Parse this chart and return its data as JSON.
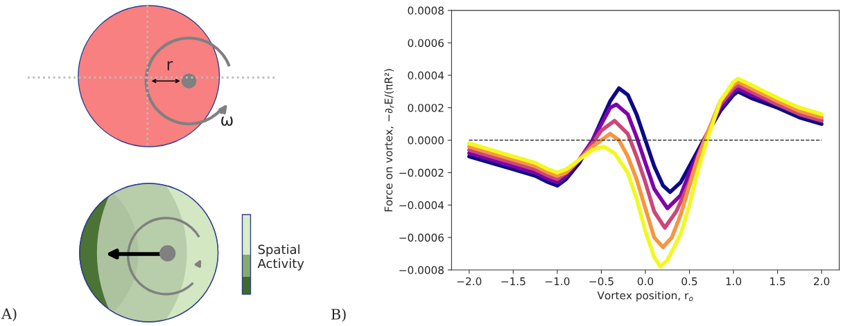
{
  "chart_data": [
    {
      "type": "other",
      "annotations": [
        "r",
        "ω",
        "Spatial\nActivity",
        "A)"
      ]
    },
    {
      "type": "line",
      "xlabel": "Vortex position, r$_{o}$",
      "ylabel": "Force on vortex, −∂$_{r}$E/(πR²)",
      "xlim": [
        -2.2,
        2.2
      ],
      "ylim": [
        -0.0008,
        0.0008
      ],
      "xticks": [
        {
          "value": -2.0,
          "label": "−2.0"
        },
        {
          "value": -1.5,
          "label": "−1.5"
        },
        {
          "value": -1.0,
          "label": "−1.0"
        },
        {
          "value": -0.5,
          "label": "−0.5"
        },
        {
          "value": 0.0,
          "label": "0.0"
        },
        {
          "value": 0.5,
          "label": "0.5"
        },
        {
          "value": 1.0,
          "label": "1.0"
        },
        {
          "value": 1.5,
          "label": "1.5"
        },
        {
          "value": 2.0,
          "label": "2.0"
        }
      ],
      "yticks": [
        {
          "value": -0.0008,
          "label": "−0.0008"
        },
        {
          "value": -0.0006,
          "label": "−0.0006"
        },
        {
          "value": -0.0004,
          "label": "−0.0004"
        },
        {
          "value": -0.0002,
          "label": "−0.0002"
        },
        {
          "value": 0.0,
          "label": "0.0000"
        },
        {
          "value": 0.0002,
          "label": "0.0002"
        },
        {
          "value": 0.0004,
          "label": "0.0004"
        },
        {
          "value": 0.0006,
          "label": "0.0006"
        },
        {
          "value": 0.0008,
          "label": "0.0008"
        }
      ],
      "grid": false,
      "legend": false,
      "marker": "none",
      "line_style": "solid",
      "ref_lines": [
        {
          "axis": "y",
          "value": 0.0,
          "color": "#333333",
          "line_style": "dashed"
        }
      ],
      "annotations": [
        "B)"
      ],
      "series": [
        {
          "color": "#0d0887",
          "x": [
            -2,
            -1.75,
            -1.5,
            -1.25,
            -1.1,
            -1,
            -0.9,
            -0.75,
            -0.6,
            -0.5,
            -0.4,
            -0.3,
            -0.2,
            -0.1,
            0,
            0.1,
            0.2,
            0.28,
            0.4,
            0.5,
            0.6,
            0.7,
            0.85,
            1.0,
            1.05,
            1.2,
            1.5,
            1.75,
            2
          ],
          "values": [
            -0.0001,
            -0.00014,
            -0.00018,
            -0.00022,
            -0.00026,
            -0.00028,
            -0.00024,
            -0.00014,
            0.0,
            0.00012,
            0.00024,
            0.00032,
            0.00028,
            0.00016,
            0.0,
            -0.00016,
            -0.00028,
            -0.00032,
            -0.00026,
            -0.00016,
            -6e-05,
            4e-05,
            0.00018,
            0.00028,
            0.0003,
            0.00026,
            0.0002,
            0.00014,
            0.0001
          ]
        },
        {
          "color": "#7e03a8",
          "x": [
            -2,
            -1.75,
            -1.5,
            -1.25,
            -1.1,
            -1,
            -0.9,
            -0.75,
            -0.6,
            -0.5,
            -0.4,
            -0.33,
            -0.2,
            -0.1,
            0,
            0.1,
            0.25,
            0.4,
            0.5,
            0.6,
            0.7,
            0.85,
            1.0,
            1.05,
            1.2,
            1.5,
            1.75,
            2
          ],
          "values": [
            -8e-05,
            -0.00012,
            -0.00016,
            -0.0002,
            -0.00024,
            -0.00026,
            -0.00022,
            -0.00012,
            0.0,
            0.0001,
            0.0002,
            0.00022,
            0.00016,
            2e-05,
            -0.00014,
            -0.0003,
            -0.00042,
            -0.00034,
            -0.0002,
            -8e-05,
            4e-05,
            0.0002,
            0.0003,
            0.00032,
            0.00028,
            0.00022,
            0.00016,
            0.00012
          ]
        },
        {
          "color": "#cc4778",
          "x": [
            -2,
            -1.75,
            -1.5,
            -1.25,
            -1.1,
            -1,
            -0.9,
            -0.75,
            -0.6,
            -0.5,
            -0.35,
            -0.2,
            -0.1,
            0,
            0.1,
            0.22,
            0.35,
            0.5,
            0.6,
            0.7,
            0.85,
            1.0,
            1.05,
            1.2,
            1.5,
            1.75,
            2
          ],
          "values": [
            -6e-05,
            -0.0001,
            -0.00014,
            -0.00018,
            -0.00022,
            -0.00024,
            -0.0002,
            -0.00012,
            -2e-05,
            6e-05,
            0.00012,
            4e-05,
            -0.0001,
            -0.00026,
            -0.00044,
            -0.00054,
            -0.00044,
            -0.00026,
            -0.0001,
            4e-05,
            0.00022,
            0.00032,
            0.00034,
            0.0003,
            0.00022,
            0.00016,
            0.00012
          ]
        },
        {
          "color": "#f89540",
          "x": [
            -2,
            -1.75,
            -1.5,
            -1.25,
            -1.1,
            -1,
            -0.9,
            -0.75,
            -0.6,
            -0.5,
            -0.4,
            -0.3,
            -0.2,
            -0.1,
            0,
            0.1,
            0.2,
            0.3,
            0.4,
            0.5,
            0.6,
            0.7,
            0.85,
            1.0,
            1.05,
            1.2,
            1.5,
            1.75,
            2
          ],
          "values": [
            -4e-05,
            -8e-05,
            -0.00012,
            -0.00016,
            -0.0002,
            -0.00022,
            -0.0002,
            -0.00012,
            -4e-05,
            0.0,
            4e-05,
            0.0,
            -0.0001,
            -0.00024,
            -0.00042,
            -0.0006,
            -0.00066,
            -0.0006,
            -0.00046,
            -0.00028,
            -0.0001,
            4e-05,
            0.00024,
            0.00034,
            0.00036,
            0.00032,
            0.00024,
            0.00018,
            0.00014
          ]
        },
        {
          "color": "#f0f921",
          "x": [
            -2,
            -1.75,
            -1.5,
            -1.25,
            -1.1,
            -1,
            -0.9,
            -0.75,
            -0.6,
            -0.47,
            -0.35,
            -0.2,
            -0.1,
            0,
            0.1,
            0.17,
            0.25,
            0.4,
            0.5,
            0.6,
            0.7,
            0.85,
            1.0,
            1.05,
            1.2,
            1.5,
            1.75,
            2
          ],
          "values": [
            -2e-05,
            -6e-05,
            -0.0001,
            -0.00014,
            -0.00018,
            -0.0002,
            -0.00018,
            -0.00012,
            -6e-05,
            -4e-05,
            -8e-05,
            -0.0002,
            -0.00036,
            -0.00056,
            -0.00072,
            -0.00078,
            -0.00074,
            -0.00058,
            -0.0004,
            -0.00018,
            0.0,
            0.00024,
            0.00036,
            0.00038,
            0.00034,
            0.00026,
            0.0002,
            0.00016
          ]
        }
      ]
    }
  ]
}
